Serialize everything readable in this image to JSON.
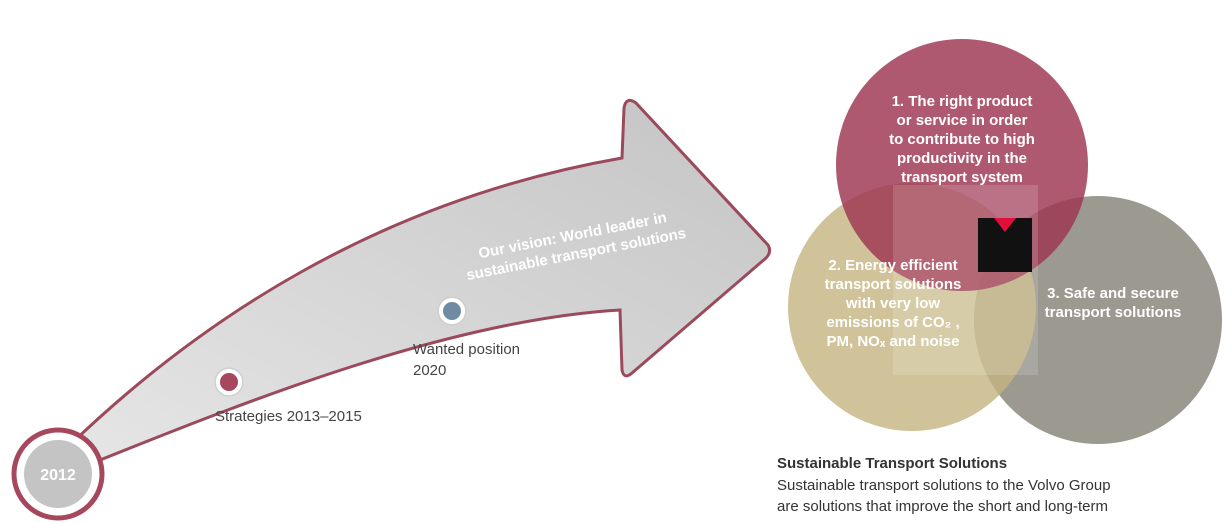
{
  "vision": {
    "lines": [
      "Our vision: World leader in",
      "sustainable transport solutions"
    ]
  },
  "milestones": {
    "start": "2012",
    "strategies": "Strategies 2013–2015",
    "wanted": [
      "Wanted position",
      "2020"
    ]
  },
  "circles": [
    {
      "lines": [
        "1. The right product",
        "or service in order",
        "to contribute to high",
        "productivity in the",
        "transport system"
      ]
    },
    {
      "lines": [
        "2. Energy efficient",
        "transport solutions",
        "with very low",
        "emissions of CO₂ ,",
        "PM, NOₓ and noise"
      ]
    },
    {
      "lines": [
        "3. Safe and secure",
        "transport solutions"
      ]
    }
  ],
  "footer": {
    "title": "Sustainable Transport Solutions",
    "lines": [
      "Sustainable transport solutions to the Volvo Group",
      "are solutions that improve the short and long-term"
    ]
  }
}
